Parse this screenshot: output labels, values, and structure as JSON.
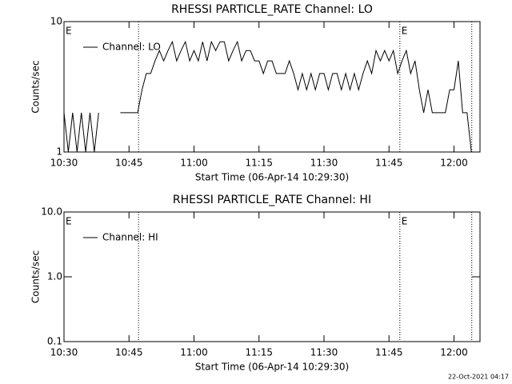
{
  "chart_data": [
    {
      "type": "line",
      "title": "RHESSI PARTICLE_RATE Channel: LO",
      "xlabel": "Start Time (06-Apr-14 10:29:30)",
      "ylabel": "Counts/sec",
      "log_y": true,
      "ylim": [
        1,
        10
      ],
      "yticks": [
        1,
        10
      ],
      "xlim": [
        0,
        96
      ],
      "xticks": [
        {
          "value": 0,
          "label": "10:30"
        },
        {
          "value": 15,
          "label": "10:45"
        },
        {
          "value": 30,
          "label": "11:00"
        },
        {
          "value": 45,
          "label": "11:15"
        },
        {
          "value": 60,
          "label": "11:30"
        },
        {
          "value": 75,
          "label": "11:45"
        },
        {
          "value": 90,
          "label": "12:00"
        }
      ],
      "vlines": [
        17.2,
        77.5,
        94.1
      ],
      "annotations": [
        {
          "text": "E",
          "x": 0
        },
        {
          "text": "E",
          "x": 77.5
        }
      ],
      "x": [
        0,
        1,
        2,
        3,
        4,
        5,
        6,
        7,
        8,
        9,
        10,
        11,
        12,
        13,
        14,
        15,
        16,
        17,
        18,
        19,
        20,
        21,
        22,
        23,
        24,
        25,
        26,
        27,
        28,
        29,
        30,
        31,
        32,
        33,
        34,
        35,
        36,
        37,
        38,
        39,
        40,
        41,
        42,
        43,
        44,
        45,
        46,
        47,
        48,
        49,
        50,
        51,
        52,
        53,
        54,
        55,
        56,
        57,
        58,
        59,
        60,
        61,
        62,
        63,
        64,
        65,
        66,
        67,
        68,
        69,
        70,
        71,
        72,
        73,
        74,
        75,
        76,
        77,
        78,
        79,
        80,
        81,
        82,
        83,
        84,
        85,
        86,
        87,
        88,
        89,
        90,
        91,
        92,
        93,
        94
      ],
      "series": [
        {
          "name": "Channel: LO",
          "color": "#000000",
          "values": [
            2,
            1,
            2,
            1,
            2,
            1,
            2,
            1,
            2,
            null,
            null,
            null,
            null,
            2,
            2,
            2,
            2,
            2,
            3,
            4,
            4,
            5,
            6,
            5,
            6,
            7,
            5,
            6,
            7,
            5,
            6,
            5,
            7,
            5,
            7,
            6,
            7,
            7,
            5,
            6,
            7,
            5,
            6,
            6,
            5,
            5,
            4,
            5,
            5,
            4,
            4,
            4,
            5,
            4,
            3,
            4,
            3,
            4,
            3,
            4,
            4,
            3,
            4,
            4,
            3,
            4,
            3,
            4,
            3,
            4,
            5,
            4,
            6,
            5,
            6,
            5,
            6,
            4,
            5,
            6,
            4,
            5,
            3,
            2,
            3,
            2,
            2,
            2,
            2,
            3,
            3,
            5,
            2,
            2,
            1
          ]
        }
      ]
    },
    {
      "type": "line",
      "title": "RHESSI PARTICLE_RATE Channel: HI",
      "xlabel": "Start Time (06-Apr-14 10:29:30)",
      "ylabel": "Counts/sec",
      "log_y": true,
      "ylim": [
        0.1,
        10
      ],
      "yticks": [
        0.1,
        {
          "value": 1,
          "label": "1.0"
        },
        {
          "value": 10,
          "label": "10.0"
        }
      ],
      "xlim": [
        0,
        96
      ],
      "xticks": [
        {
          "value": 0,
          "label": "10:30"
        },
        {
          "value": 15,
          "label": "10:45"
        },
        {
          "value": 30,
          "label": "11:00"
        },
        {
          "value": 45,
          "label": "11:15"
        },
        {
          "value": 60,
          "label": "11:30"
        },
        {
          "value": 75,
          "label": "11:45"
        },
        {
          "value": 90,
          "label": "12:00"
        }
      ],
      "vlines": [
        17.2,
        77.5,
        94.1
      ],
      "annotations": [
        {
          "text": "E",
          "x": 0
        },
        {
          "text": "E",
          "x": 77.5
        }
      ],
      "x": [],
      "series": [
        {
          "name": "Channel: HI",
          "color": "#000000",
          "values": []
        }
      ]
    }
  ],
  "footer": "22-Oct-2021 04:17"
}
